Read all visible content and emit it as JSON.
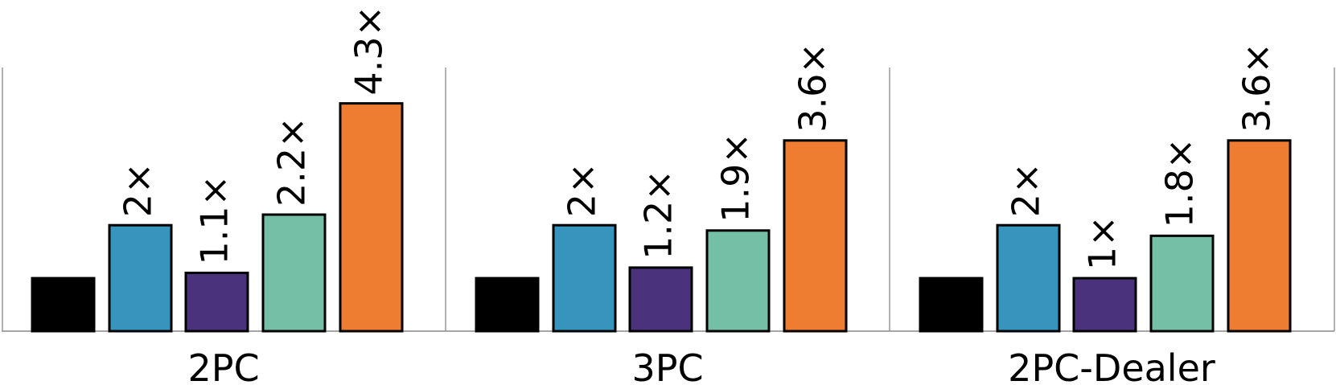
{
  "chart_data": {
    "type": "bar",
    "title": "",
    "xlabel": "",
    "ylabel": "",
    "ylim": [
      0,
      4.3
    ],
    "grid": false,
    "legend": "none",
    "colors": [
      "#000000",
      "#3795bd",
      "#4a327d",
      "#75bfa6",
      "#ee7d31"
    ],
    "groups": [
      {
        "name": "2PC",
        "values": [
          1,
          2,
          1.1,
          2.2,
          4.3
        ],
        "labels": [
          "",
          "2×",
          "1.1×",
          "2.2×",
          "4.3×"
        ]
      },
      {
        "name": "3PC",
        "values": [
          1,
          2,
          1.2,
          1.9,
          3.6
        ],
        "labels": [
          "",
          "2×",
          "1.2×",
          "1.9×",
          "3.6×"
        ]
      },
      {
        "name": "2PC-Dealer",
        "values": [
          1,
          2,
          1,
          1.8,
          3.6
        ],
        "labels": [
          "",
          "2×",
          "1×",
          "1.8×",
          "3.6×"
        ]
      }
    ]
  }
}
